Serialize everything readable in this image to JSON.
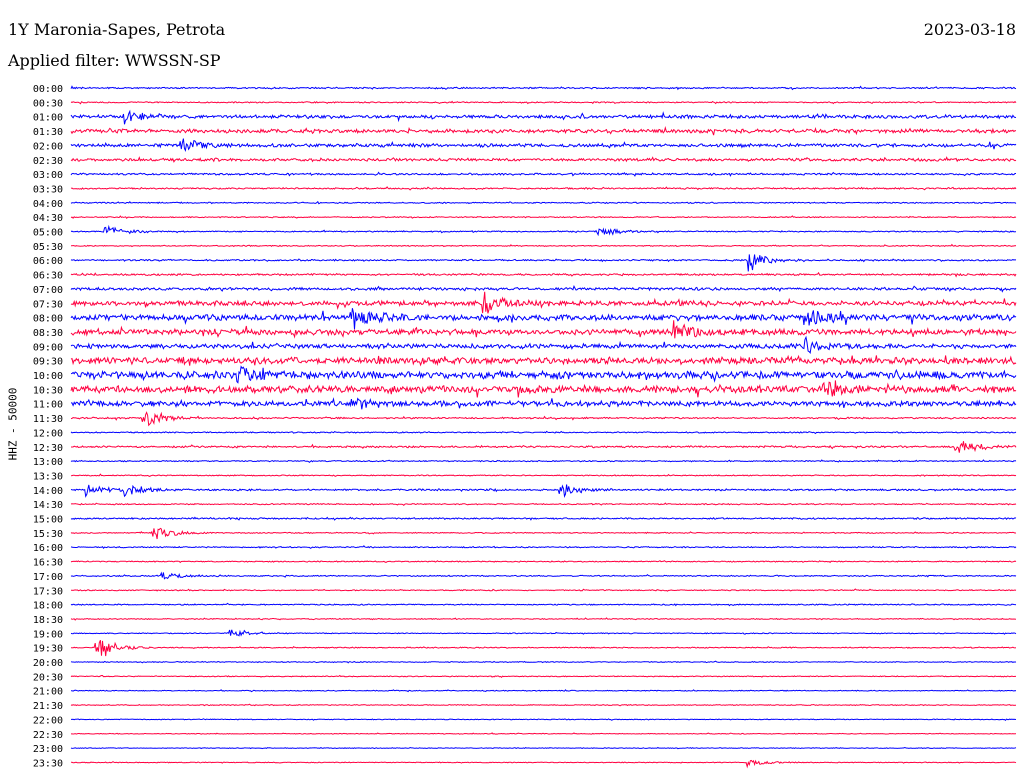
{
  "header": {
    "station": "1Y Maronia-Sapes, Petrota",
    "date": "2023-03-18",
    "filter": "Applied filter: WWSSN-SP"
  },
  "axis": {
    "left_label": "HHZ - 50000"
  },
  "colors": {
    "trace_a": "#0000ff",
    "trace_b": "#ff0040",
    "text": "#000000"
  },
  "chart_data": {
    "type": "line",
    "title": "",
    "rows": [
      "00:00",
      "00:30",
      "01:00",
      "01:30",
      "02:00",
      "02:30",
      "03:00",
      "03:30",
      "04:00",
      "04:30",
      "05:00",
      "05:30",
      "06:00",
      "06:30",
      "07:00",
      "07:30",
      "08:00",
      "08:30",
      "09:00",
      "09:30",
      "10:00",
      "10:30",
      "11:00",
      "11:30",
      "12:00",
      "12:30",
      "13:00",
      "13:30",
      "14:00",
      "14:30",
      "15:00",
      "15:30",
      "16:00",
      "16:30",
      "17:00",
      "17:30",
      "18:00",
      "18:30",
      "19:00",
      "19:30",
      "20:00",
      "20:30",
      "21:00",
      "21:30",
      "22:00",
      "22:30",
      "23:00",
      "23:30"
    ],
    "row_noise": [
      0.1,
      0.08,
      0.22,
      0.25,
      0.22,
      0.18,
      0.12,
      0.1,
      0.08,
      0.07,
      0.08,
      0.07,
      0.1,
      0.12,
      0.18,
      0.3,
      0.4,
      0.38,
      0.3,
      0.45,
      0.5,
      0.48,
      0.35,
      0.1,
      0.08,
      0.12,
      0.08,
      0.07,
      0.12,
      0.08,
      0.1,
      0.07,
      0.08,
      0.07,
      0.08,
      0.07,
      0.08,
      0.06,
      0.06,
      0.07,
      0.06,
      0.06,
      0.06,
      0.06,
      0.05,
      0.05,
      0.05,
      0.05
    ],
    "events": [
      {
        "row": "01:00",
        "t": 0.06,
        "amp": 1.0
      },
      {
        "row": "02:00",
        "t": 0.12,
        "amp": 1.0
      },
      {
        "row": "05:00",
        "t": 0.04,
        "amp": 0.9
      },
      {
        "row": "05:00",
        "t": 0.56,
        "amp": 0.8
      },
      {
        "row": "06:00",
        "t": 0.72,
        "amp": 1.6
      },
      {
        "row": "07:30",
        "t": 0.44,
        "amp": 1.8
      },
      {
        "row": "08:00",
        "t": 0.3,
        "amp": 1.8
      },
      {
        "row": "08:00",
        "t": 0.78,
        "amp": 1.4
      },
      {
        "row": "08:30",
        "t": 0.64,
        "amp": 1.9
      },
      {
        "row": "09:00",
        "t": 0.78,
        "amp": 1.2
      },
      {
        "row": "10:00",
        "t": 0.18,
        "amp": 1.5
      },
      {
        "row": "10:30",
        "t": 0.8,
        "amp": 1.3
      },
      {
        "row": "11:00",
        "t": 0.3,
        "amp": 1.0
      },
      {
        "row": "11:30",
        "t": 0.08,
        "amp": 1.5
      },
      {
        "row": "12:30",
        "t": 0.94,
        "amp": 1.5
      },
      {
        "row": "14:00",
        "t": 0.02,
        "amp": 1.0
      },
      {
        "row": "14:00",
        "t": 0.06,
        "amp": 1.0
      },
      {
        "row": "14:00",
        "t": 0.52,
        "amp": 1.3
      },
      {
        "row": "15:30",
        "t": 0.09,
        "amp": 1.2
      },
      {
        "row": "17:00",
        "t": 0.1,
        "amp": 0.7
      },
      {
        "row": "19:00",
        "t": 0.17,
        "amp": 0.6
      },
      {
        "row": "19:30",
        "t": 0.03,
        "amp": 1.8
      },
      {
        "row": "23:30",
        "t": 0.72,
        "amp": 0.6
      }
    ]
  }
}
